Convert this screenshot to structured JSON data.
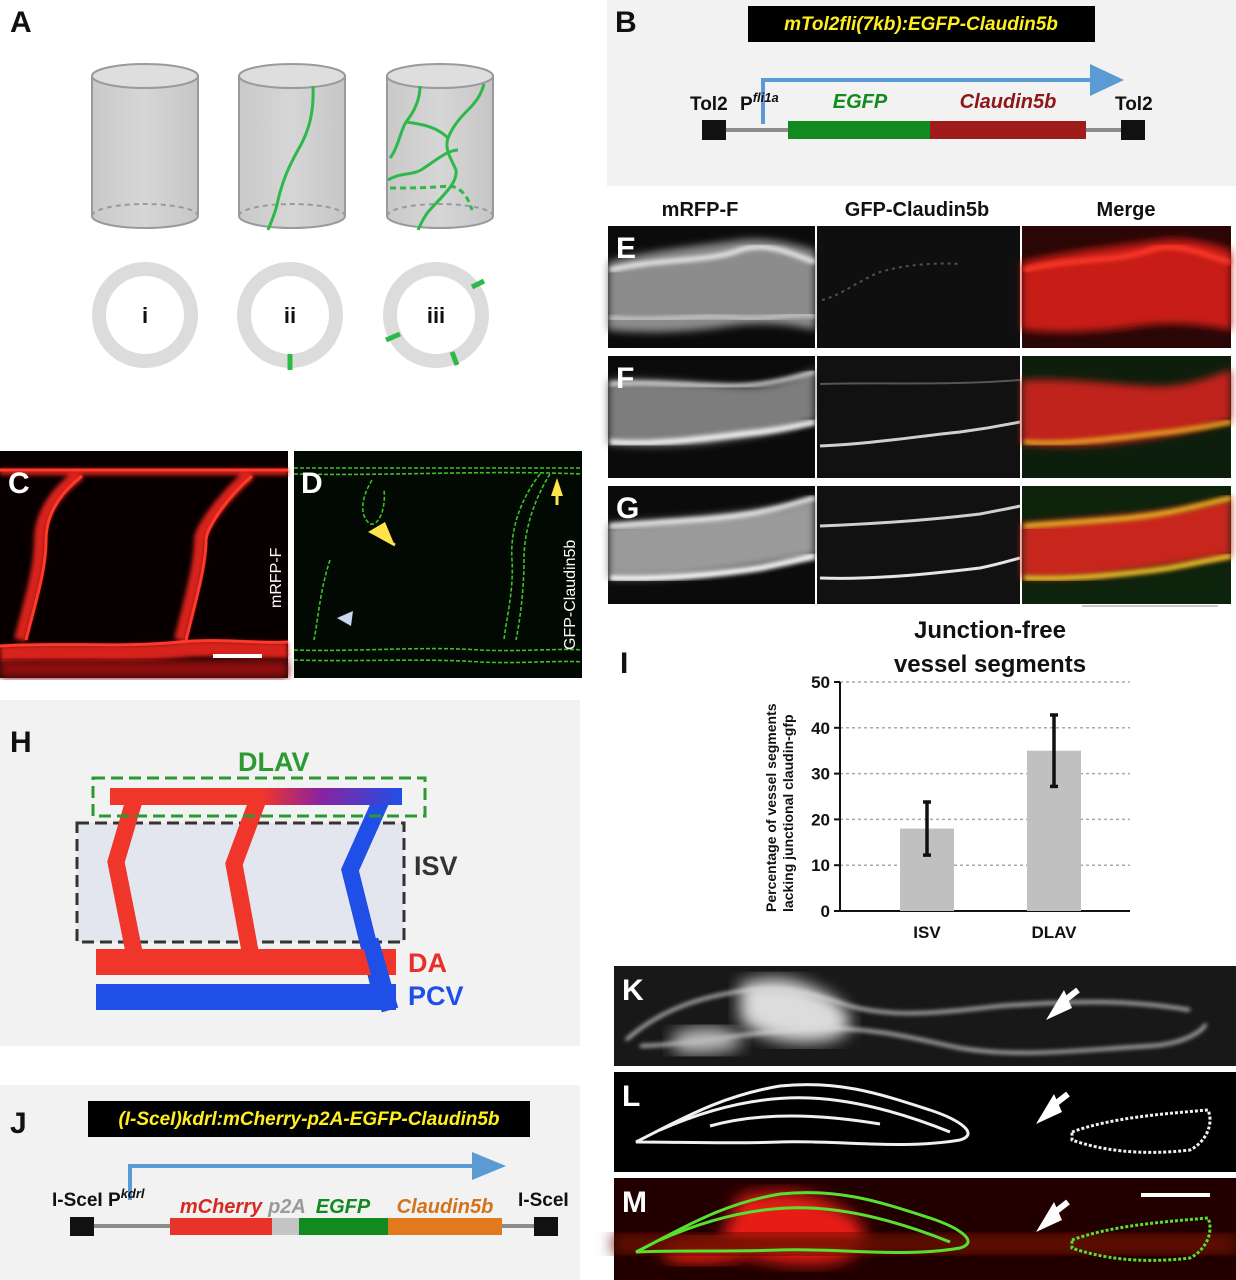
{
  "panels": {
    "A": "A",
    "B": "B",
    "C": "C",
    "D": "D",
    "E": "E",
    "F": "F",
    "G": "G",
    "H": "H",
    "I": "I",
    "J": "J",
    "K": "K",
    "L": "L",
    "M": "M"
  },
  "panel_a": {
    "cases": [
      "i",
      "ii",
      "iii"
    ]
  },
  "panel_b": {
    "construct": "mTol2fli(7kb):EGFP-Claudin5b",
    "left_arm": "Tol2",
    "right_arm": "Tol2",
    "promoter_base": "P",
    "promoter_sup": "fli1a",
    "segments": [
      "EGFP",
      "Claudin5b"
    ]
  },
  "panel_cd": {
    "c_channel": "mRFP-F",
    "d_channel": "GFP-Claudin5b"
  },
  "panel_efg": {
    "columns": [
      "mRFP-F",
      "GFP-Claudin5b",
      "Merge"
    ]
  },
  "panel_h": {
    "dlav": "DLAV",
    "isv": "ISV",
    "da": "DA",
    "pcv": "PCV"
  },
  "panel_j": {
    "construct": "(I-SceI)kdrl:mCherry-p2A-EGFP-Claudin5b",
    "left_arm": "I-SceI",
    "right_arm": "I-SceI",
    "promoter_base": "P",
    "promoter_sup": "kdrl",
    "segments": [
      "mCherry",
      "p2A",
      "EGFP",
      "Claudin5b"
    ]
  },
  "colors": {
    "vessel_green": "#2db84a",
    "artery_red": "#f0352b",
    "vein_blue": "#1f4fe6",
    "arrow_blue": "#5b9bd5",
    "bar_gray": "#c0c0c0",
    "egfp_green": "#118b1e",
    "claudin_red": "#a01b1b",
    "mcherry_red": "#e8332a",
    "claudin_orange": "#e07a1c"
  },
  "chart_data": {
    "type": "bar",
    "title": "Junction-free vessel segments",
    "ylabel": "Percentage of vessel segments lacking junctional claudin-gfp",
    "categories": [
      "ISV",
      "DLAV"
    ],
    "values": [
      18,
      35
    ],
    "errors": [
      5.8,
      7.8
    ],
    "ylim": [
      0,
      50
    ],
    "yticks": [
      "0",
      "10",
      "20",
      "30",
      "40",
      "50"
    ],
    "grid": true
  }
}
